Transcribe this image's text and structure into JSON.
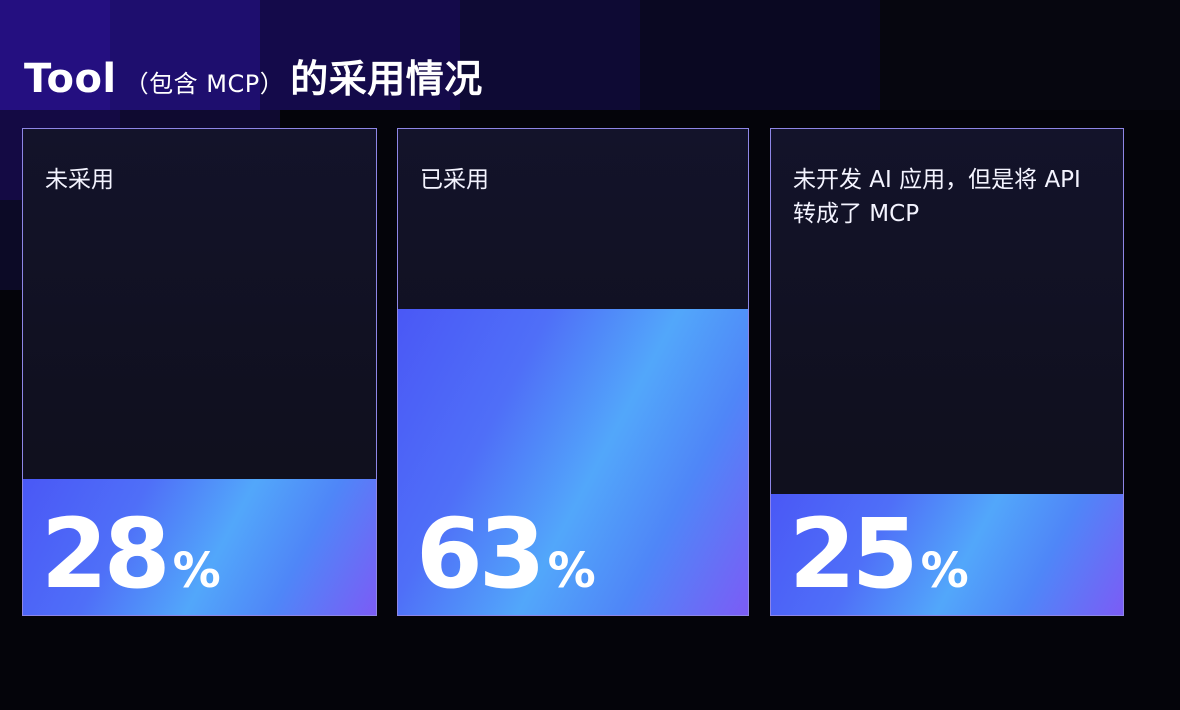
{
  "title": {
    "main": "Tool",
    "sub": "（包含 MCP）",
    "tail": "的采用情况"
  },
  "chart_data": {
    "type": "bar",
    "categories": [
      "未采用",
      "已采用",
      "未开发 AI 应用，但是将 API 转成了 MCP"
    ],
    "values": [
      28,
      63,
      25
    ],
    "unit": "%",
    "ylim": [
      0,
      100
    ]
  },
  "cards": [
    {
      "label": "未采用",
      "value": "28",
      "unit": "%"
    },
    {
      "label": "已采用",
      "value": "63",
      "unit": "%"
    },
    {
      "label": "未开发 AI 应用，但是将 API 转成了 MCP",
      "value": "25",
      "unit": "%"
    }
  ]
}
